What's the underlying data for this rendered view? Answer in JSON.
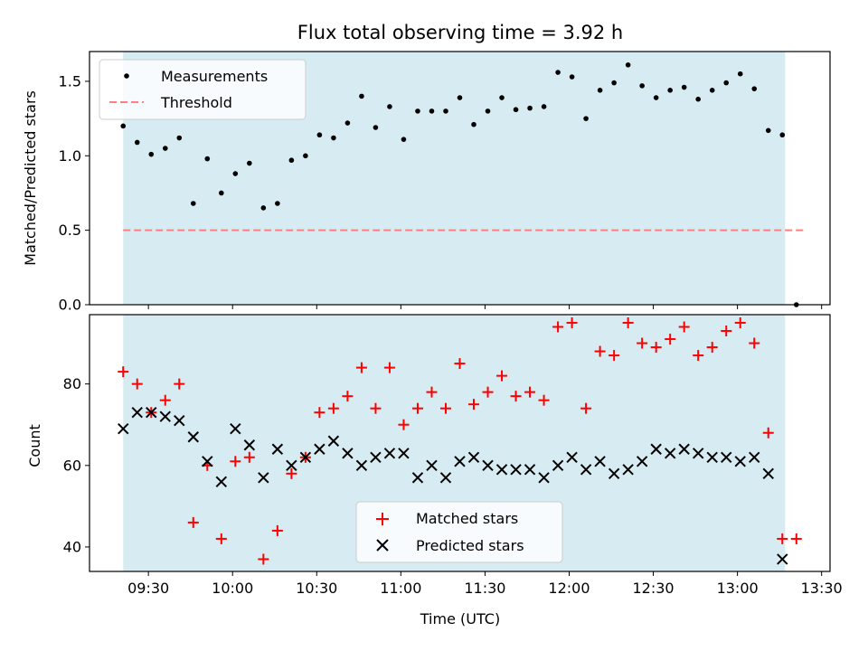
{
  "title": "Flux total observing time = 3.92 h",
  "colors": {
    "shade": "#add8e6",
    "matched": "#ff0000",
    "predicted": "#000000",
    "ratio": "#000000",
    "threshold": "#ff7f7f"
  },
  "chart_data": [
    {
      "type": "scatter",
      "ylabel": "Matched/Predicted stars",
      "ylim": [
        0,
        1.7
      ],
      "yticks": [
        "0.0",
        "0.5",
        "1.0",
        "1.5"
      ],
      "legend_position": "top-left",
      "observing_window": [
        "09:21",
        "13:17"
      ],
      "series": [
        {
          "name": "Measurements",
          "marker": "dot",
          "points": [
            [
              "09:21",
              1.2
            ],
            [
              "09:26",
              1.09
            ],
            [
              "09:31",
              1.01
            ],
            [
              "09:36",
              1.05
            ],
            [
              "09:41",
              1.12
            ],
            [
              "09:46",
              0.68
            ],
            [
              "09:51",
              0.98
            ],
            [
              "09:56",
              0.75
            ],
            [
              "10:01",
              0.88
            ],
            [
              "10:06",
              0.95
            ],
            [
              "10:11",
              0.65
            ],
            [
              "10:16",
              0.68
            ],
            [
              "10:21",
              0.97
            ],
            [
              "10:26",
              1.0
            ],
            [
              "10:31",
              1.14
            ],
            [
              "10:36",
              1.12
            ],
            [
              "10:41",
              1.22
            ],
            [
              "10:46",
              1.4
            ],
            [
              "10:51",
              1.19
            ],
            [
              "10:56",
              1.33
            ],
            [
              "11:01",
              1.11
            ],
            [
              "11:06",
              1.3
            ],
            [
              "11:11",
              1.3
            ],
            [
              "11:16",
              1.3
            ],
            [
              "11:21",
              1.39
            ],
            [
              "11:26",
              1.21
            ],
            [
              "11:31",
              1.3
            ],
            [
              "11:36",
              1.39
            ],
            [
              "11:41",
              1.31
            ],
            [
              "11:46",
              1.32
            ],
            [
              "11:51",
              1.33
            ],
            [
              "11:56",
              1.56
            ],
            [
              "12:01",
              1.53
            ],
            [
              "12:06",
              1.25
            ],
            [
              "12:11",
              1.44
            ],
            [
              "12:16",
              1.49
            ],
            [
              "12:21",
              1.61
            ],
            [
              "12:26",
              1.47
            ],
            [
              "12:31",
              1.39
            ],
            [
              "12:36",
              1.44
            ],
            [
              "12:41",
              1.46
            ],
            [
              "12:46",
              1.38
            ],
            [
              "12:51",
              1.44
            ],
            [
              "12:56",
              1.49
            ],
            [
              "13:01",
              1.55
            ],
            [
              "13:06",
              1.45
            ],
            [
              "13:11",
              1.17
            ],
            [
              "13:16",
              1.14
            ],
            [
              "13:21",
              0.0
            ]
          ]
        },
        {
          "name": "Threshold",
          "marker": "dashed-line",
          "points": [
            [
              "09:21",
              0.5
            ],
            [
              "13:24",
              0.5
            ]
          ]
        }
      ]
    },
    {
      "type": "scatter",
      "xlabel": "Time (UTC)",
      "ylabel": "Count",
      "ylim": [
        34,
        97
      ],
      "yticks": [
        "40",
        "60",
        "80"
      ],
      "xlim": [
        "09:09",
        "13:33"
      ],
      "xticks": [
        "09:30",
        "10:00",
        "10:30",
        "11:00",
        "11:30",
        "12:00",
        "12:30",
        "13:00",
        "13:30"
      ],
      "legend_position": "bottom-center",
      "observing_window": [
        "09:21",
        "13:17"
      ],
      "series": [
        {
          "name": "Matched stars",
          "marker": "plus",
          "points": [
            [
              "09:21",
              83
            ],
            [
              "09:26",
              80
            ],
            [
              "09:31",
              73
            ],
            [
              "09:36",
              76
            ],
            [
              "09:41",
              80
            ],
            [
              "09:46",
              46
            ],
            [
              "09:51",
              60
            ],
            [
              "09:56",
              42
            ],
            [
              "10:01",
              61
            ],
            [
              "10:06",
              62
            ],
            [
              "10:11",
              37
            ],
            [
              "10:16",
              44
            ],
            [
              "10:21",
              58
            ],
            [
              "10:26",
              62
            ],
            [
              "10:31",
              73
            ],
            [
              "10:36",
              74
            ],
            [
              "10:41",
              77
            ],
            [
              "10:46",
              84
            ],
            [
              "10:51",
              74
            ],
            [
              "10:56",
              84
            ],
            [
              "11:01",
              70
            ],
            [
              "11:06",
              74
            ],
            [
              "11:11",
              78
            ],
            [
              "11:16",
              74
            ],
            [
              "11:21",
              85
            ],
            [
              "11:26",
              75
            ],
            [
              "11:31",
              78
            ],
            [
              "11:36",
              82
            ],
            [
              "11:41",
              77
            ],
            [
              "11:46",
              78
            ],
            [
              "11:51",
              76
            ],
            [
              "11:56",
              94
            ],
            [
              "12:01",
              95
            ],
            [
              "12:06",
              74
            ],
            [
              "12:11",
              88
            ],
            [
              "12:16",
              87
            ],
            [
              "12:21",
              95
            ],
            [
              "12:26",
              90
            ],
            [
              "12:31",
              89
            ],
            [
              "12:36",
              91
            ],
            [
              "12:41",
              94
            ],
            [
              "12:46",
              87
            ],
            [
              "12:51",
              89
            ],
            [
              "12:56",
              93
            ],
            [
              "13:01",
              95
            ],
            [
              "13:06",
              90
            ],
            [
              "13:11",
              68
            ],
            [
              "13:16",
              42
            ],
            [
              "13:21",
              42
            ]
          ]
        },
        {
          "name": "Predicted stars",
          "marker": "x",
          "points": [
            [
              "09:21",
              69
            ],
            [
              "09:26",
              73
            ],
            [
              "09:31",
              73
            ],
            [
              "09:36",
              72
            ],
            [
              "09:41",
              71
            ],
            [
              "09:46",
              67
            ],
            [
              "09:51",
              61
            ],
            [
              "09:56",
              56
            ],
            [
              "10:01",
              69
            ],
            [
              "10:06",
              65
            ],
            [
              "10:11",
              57
            ],
            [
              "10:16",
              64
            ],
            [
              "10:21",
              60
            ],
            [
              "10:26",
              62
            ],
            [
              "10:31",
              64
            ],
            [
              "10:36",
              66
            ],
            [
              "10:41",
              63
            ],
            [
              "10:46",
              60
            ],
            [
              "10:51",
              62
            ],
            [
              "10:56",
              63
            ],
            [
              "11:01",
              63
            ],
            [
              "11:06",
              57
            ],
            [
              "11:11",
              60
            ],
            [
              "11:16",
              57
            ],
            [
              "11:21",
              61
            ],
            [
              "11:26",
              62
            ],
            [
              "11:31",
              60
            ],
            [
              "11:36",
              59
            ],
            [
              "11:41",
              59
            ],
            [
              "11:46",
              59
            ],
            [
              "11:51",
              57
            ],
            [
              "11:56",
              60
            ],
            [
              "12:01",
              62
            ],
            [
              "12:06",
              59
            ],
            [
              "12:11",
              61
            ],
            [
              "12:16",
              58
            ],
            [
              "12:21",
              59
            ],
            [
              "12:26",
              61
            ],
            [
              "12:31",
              64
            ],
            [
              "12:36",
              63
            ],
            [
              "12:41",
              64
            ],
            [
              "12:46",
              63
            ],
            [
              "12:51",
              62
            ],
            [
              "12:56",
              62
            ],
            [
              "13:01",
              61
            ],
            [
              "13:06",
              62
            ],
            [
              "13:11",
              58
            ],
            [
              "13:16",
              37
            ]
          ]
        }
      ]
    }
  ]
}
